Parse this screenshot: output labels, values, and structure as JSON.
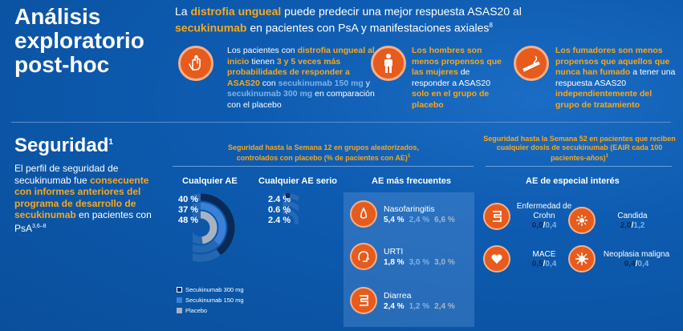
{
  "header": {
    "title_lines": [
      "Análisis",
      "exploratorio",
      "post-hoc"
    ],
    "lead": {
      "p1": "La ",
      "b1": "distrofia ungueal",
      "p2": " puede predecir una mejor respuesta ASAS20 al ",
      "b2": "secukinumab",
      "p3": " en pacientes con PsA y manifestaciones axiales",
      "sup": "8"
    }
  },
  "cards": [
    {
      "icon": "hand-nail-icon",
      "t1": "Los pacientes con ",
      "b1": "distrofia ungueal al inicio",
      "t2": " tienen ",
      "b2": "3 y 5 veces más probabilidades de responder a ASAS20",
      "t3": " con ",
      "b3": "secukinumab 150 mg",
      "t4": " y ",
      "b4": "secukinumab 300 mg",
      "t5": " en comparación con el placebo"
    },
    {
      "icon": "man-figure-icon",
      "b1": "Los hombres son menos propensos que las mujeres",
      "t1": " de responder a ASAS20 ",
      "b2": "solo en el grupo de placebo"
    },
    {
      "icon": "cigarette-icon",
      "b1": "Los fumadores son menos propensos que aquellos que nunca han fumado",
      "t1": " a tener una respuesta ASAS20 ",
      "b2": "independientemente del grupo de tratamiento"
    }
  ],
  "safety": {
    "title": "Seguridad",
    "sup": "1",
    "b0": "El perfil de seguridad de secukinumab fue ",
    "b1": "consecuente con informes anteriores del programa de desarrollo de secukinumab",
    "b2": " en pacientes con PsA",
    "b2sup": "3,6–8",
    "hdr12": "Seguridad hasta la Semana 12 en grupos aleatorizados, controlados con placebo (% de pacientes con AE)",
    "hdr12sup": "1",
    "hdr52": "Seguridad hasta la Semana 52 en pacientes que reciben cualquier dosis de secukinumab (EAIR cada 100 pacientes-años)",
    "hdr52sup": "1",
    "col_any": "Cualquier AE",
    "col_serious": "Cualquier AE serio",
    "col_frequent": "AE más frecuentes",
    "col_special": "AE de especial interés"
  },
  "chart_data": {
    "type": "bar",
    "categories": [
      "Cualquier AE",
      "Cualquier AE serio"
    ],
    "series": [
      {
        "name": "Secukinumab 300 mg",
        "values": [
          40,
          2.4
        ],
        "labels": [
          "40 %",
          "2.4 %"
        ],
        "color": "#0a2a55"
      },
      {
        "name": "Secukinumab 150 mg",
        "values": [
          37,
          0.6
        ],
        "labels": [
          "37 %",
          "0.6 %"
        ],
        "color": "#3a7fd8"
      },
      {
        "name": "Placebo",
        "values": [
          48,
          2.4
        ],
        "labels": [
          "48 %",
          "2.4 %"
        ],
        "color": "#a9b3bf"
      }
    ]
  },
  "frequent": [
    {
      "icon": "nose-icon",
      "name": "Nasofaringitis",
      "v": [
        "5,4 %",
        "2,4 %",
        "6,6 %"
      ]
    },
    {
      "icon": "head-lungs-icon",
      "name": "URTI",
      "v": [
        "1,8 %",
        "3,0 %",
        "3,0 %"
      ]
    },
    {
      "icon": "intestine-icon",
      "name": "Diarrea",
      "v": [
        "2,4 %",
        "1,2 %",
        "2,4 %"
      ]
    }
  ],
  "special": [
    {
      "icon": "intestine-icon",
      "name": "Enfermedad de Crohn",
      "v300": "0,0",
      "v150": "0,4"
    },
    {
      "icon": "fungus-icon",
      "name": "Candida",
      "v300": "2,0",
      "v150": "1,2"
    },
    {
      "icon": "heart-icon",
      "name": "MACE",
      "v300": "0,5",
      "v150": "0,4"
    },
    {
      "icon": "virus-icon",
      "name": "Neoplasia maligna",
      "v300": "0,4",
      "v150": "0,4"
    }
  ],
  "colors": {
    "orange": "#f6a81c",
    "icon_bg": "#e75b1c",
    "s300": "#0a2a55",
    "s150": "#3a7fd8",
    "placebo": "#a9b3bf"
  }
}
